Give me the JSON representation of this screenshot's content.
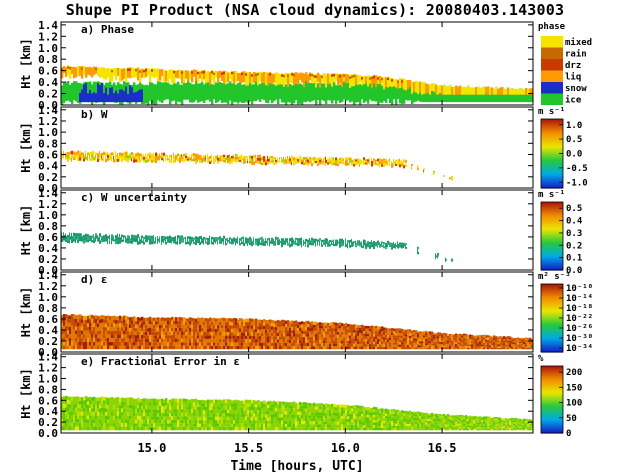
{
  "chart_data": {
    "type": "heatmap",
    "title": "Shupe PI Product (NSA cloud dynamics): 20080403.143003",
    "xlabel": "Time [hours, UTC]",
    "x_ticks": [
      "15.0",
      "15.5",
      "16.0",
      "16.5"
    ],
    "x_tick_values": [
      15.0,
      15.5,
      16.0,
      16.5
    ],
    "xlim": [
      14.53,
      16.97
    ],
    "y_ticks": [
      "0.0",
      "0.2",
      "0.4",
      "0.6",
      "0.8",
      "1.0",
      "1.2",
      "1.4"
    ],
    "ylim": [
      0,
      1.45
    ],
    "ylabel": "Ht [km]",
    "panels": [
      {
        "title": "a) Phase",
        "ylabel": "Ht [km]",
        "legend_unit": "phase",
        "legend_type": "categorical",
        "categories": [
          {
            "label": "mixed",
            "color": "#f5e400"
          },
          {
            "label": "rain",
            "color": "#c46a00"
          },
          {
            "label": "drz",
            "color": "#c83a00"
          },
          {
            "label": "liq",
            "color": "#ff9a00"
          },
          {
            "label": "snow",
            "color": "#1a2fc8"
          },
          {
            "label": "ice",
            "color": "#22c62a"
          }
        ],
        "cloud_top_km": [
          [
            14.53,
            0.68
          ],
          [
            15.0,
            0.63
          ],
          [
            15.5,
            0.57
          ],
          [
            16.0,
            0.54
          ],
          [
            16.2,
            0.5
          ],
          [
            16.5,
            0.34
          ],
          [
            16.97,
            0.27
          ]
        ]
      },
      {
        "title": "b) W",
        "ylabel": "Ht [km]",
        "legend_unit": "m s⁻¹",
        "legend_type": "continuous",
        "colorbar_ticks": [
          "1.0",
          "0.5",
          "0.0",
          "-0.5",
          "-1.0"
        ],
        "colorbar_range": [
          -1.2,
          1.2
        ],
        "data_band_km": [
          [
            14.53,
            0.49,
            0.66
          ],
          [
            15.0,
            0.46,
            0.62
          ],
          [
            15.5,
            0.43,
            0.58
          ],
          [
            16.0,
            0.4,
            0.54
          ],
          [
            16.3,
            0.36,
            0.5
          ],
          [
            16.55,
            0.12,
            0.2
          ]
        ]
      },
      {
        "title": "c) W uncertainty",
        "ylabel": "Ht [km]",
        "legend_unit": "m s⁻¹",
        "legend_type": "continuous",
        "colorbar_ticks": [
          "0.5",
          "0.4",
          "0.3",
          "0.2",
          "0.1",
          "0.0"
        ],
        "colorbar_range": [
          0,
          0.55
        ],
        "data_band_km": [
          [
            14.53,
            0.5,
            0.66
          ],
          [
            15.0,
            0.47,
            0.62
          ],
          [
            15.5,
            0.44,
            0.59
          ],
          [
            16.0,
            0.41,
            0.55
          ],
          [
            16.3,
            0.37,
            0.5
          ],
          [
            16.55,
            0.12,
            0.2
          ]
        ]
      },
      {
        "title": "d) ε",
        "ylabel": "Ht [km]",
        "legend_unit": "m² s⁻³",
        "legend_type": "continuous_log",
        "colorbar_ticks": [
          "10⁻¹⁰",
          "10⁻¹⁴",
          "10⁻¹⁸",
          "10⁻²²",
          "10⁻²⁶",
          "10⁻³⁰",
          "10⁻³⁴"
        ],
        "cloud_top_km": [
          [
            14.53,
            0.68
          ],
          [
            15.0,
            0.63
          ],
          [
            15.5,
            0.6
          ],
          [
            16.0,
            0.52
          ],
          [
            16.5,
            0.34
          ],
          [
            16.97,
            0.25
          ]
        ]
      },
      {
        "title": "e) Fractional Error in ε",
        "ylabel": "Ht [km]",
        "legend_unit": "%",
        "legend_type": "continuous",
        "colorbar_ticks": [
          "200",
          "150",
          "100",
          "50",
          "0"
        ],
        "colorbar_range": [
          0,
          220
        ],
        "cloud_top_km": [
          [
            14.53,
            0.68
          ],
          [
            15.0,
            0.63
          ],
          [
            15.5,
            0.6
          ],
          [
            16.0,
            0.52
          ],
          [
            16.5,
            0.34
          ],
          [
            16.97,
            0.25
          ]
        ]
      }
    ]
  }
}
